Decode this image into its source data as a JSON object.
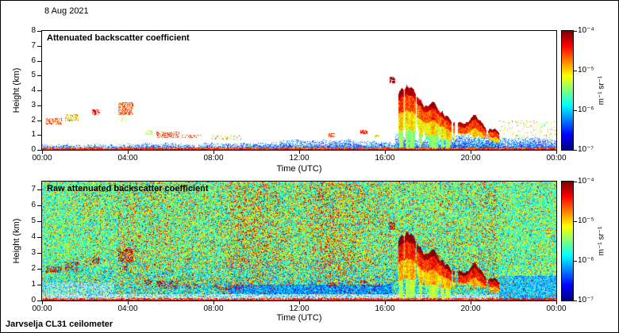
{
  "date_label": "8 Aug 2021",
  "footer_label": "Jarvselja CL31 ceilometer",
  "colorbar": {
    "units_label": "m⁻¹ sr⁻¹",
    "tick_labels": [
      "10⁻⁴",
      "10⁻⁵",
      "10⁻⁶",
      "10⁻⁷"
    ],
    "scale": "log10",
    "range_min": 1e-07,
    "range_max": 0.0001,
    "colormap": "jet"
  },
  "chart_data": [
    {
      "type": "heatmap",
      "title": "Attenuated backscatter coefficient",
      "xlabel": "Time (UTC)",
      "ylabel": "Height (km)",
      "x_range_hours": [
        0,
        24
      ],
      "xtick_hours": [
        0,
        4,
        8,
        12,
        16,
        20,
        24
      ],
      "xtick_labels": [
        "00:00",
        "04:00",
        "08:00",
        "12:00",
        "16:00",
        "20:00",
        "00:00"
      ],
      "ylim_km": [
        0,
        8
      ],
      "ytick_values": [
        0,
        1,
        2,
        3,
        4,
        5,
        6,
        7,
        8
      ],
      "ytick_labels": [
        "0",
        "1",
        "2",
        "3",
        "4",
        "5",
        "6",
        "7",
        "8"
      ],
      "features": {
        "surface_layer_km": [
          0,
          0.2
        ],
        "boundary_layer_aerosol": {
          "hours": [
            0,
            24
          ],
          "top_km_min": 0.3,
          "top_km_max": 0.7
        },
        "clouds": [
          {
            "hours": [
              0.15,
              0.9
            ],
            "km": [
              1.75,
              2.15
            ],
            "color": "orange",
            "density": 0.5
          },
          {
            "hours": [
              1.05,
              1.7
            ],
            "km": [
              1.95,
              2.45
            ],
            "color": "mixed",
            "density": 0.45
          },
          {
            "hours": [
              2.3,
              2.7
            ],
            "km": [
              2.35,
              2.75
            ],
            "color": "red",
            "density": 0.5
          },
          {
            "hours": [
              3.55,
              4.25
            ],
            "km": [
              2.4,
              3.25
            ],
            "color": "orange",
            "density": 0.6
          },
          {
            "hours": [
              3.6,
              3.95
            ],
            "km": [
              1.95,
              2.2
            ],
            "color": "green",
            "density": 0.4
          },
          {
            "hours": [
              4.75,
              5.15
            ],
            "km": [
              1.05,
              1.35
            ],
            "color": "green",
            "density": 0.5
          },
          {
            "hours": [
              5.3,
              6.4
            ],
            "km": [
              0.8,
              1.25
            ],
            "color": "orange",
            "density": 0.5
          },
          {
            "hours": [
              6.5,
              7.4
            ],
            "km": [
              0.8,
              1.05
            ],
            "color": "orange",
            "density": 0.35
          },
          {
            "hours": [
              7.9,
              9.3
            ],
            "km": [
              0.7,
              1.0
            ],
            "color": "mixed",
            "density": 0.25
          },
          {
            "hours": [
              13.35,
              13.65
            ],
            "km": [
              0.9,
              1.15
            ],
            "color": "orange",
            "density": 0.55
          },
          {
            "hours": [
              14.85,
              15.15
            ],
            "km": [
              1.1,
              1.35
            ],
            "color": "red",
            "density": 0.55
          },
          {
            "hours": [
              15.5,
              15.75
            ],
            "km": [
              0.85,
              1.05
            ],
            "color": "mixed",
            "density": 0.4
          },
          {
            "hours": [
              16.2,
              16.45
            ],
            "km": [
              4.5,
              4.95
            ],
            "color": "dark-red",
            "density": 0.8
          }
        ],
        "precipitation": {
          "hours": [
            16.55,
            21.3
          ],
          "cloud_base_km_points": [
            [
              16.55,
              4.2
            ],
            [
              17.0,
              4.4
            ],
            [
              17.5,
              3.8
            ],
            [
              18.0,
              3.1
            ],
            [
              18.6,
              2.5
            ],
            [
              19.0,
              2.2
            ],
            [
              19.6,
              2.1
            ],
            [
              20.0,
              2.0
            ],
            [
              20.6,
              1.6
            ],
            [
              21.3,
              1.0
            ]
          ]
        },
        "post_event_scatter": {
          "hours": [
            21.3,
            24
          ],
          "km": [
            0.8,
            2.0
          ]
        }
      }
    },
    {
      "type": "heatmap",
      "title": "Raw attenuated backscatter coefficient",
      "xlabel": "Time (UTC)",
      "ylabel": "Height (km)",
      "x_range_hours": [
        0,
        24
      ],
      "xtick_hours": [
        0,
        4,
        8,
        12,
        16,
        20,
        24
      ],
      "xtick_labels": [
        "00:00",
        "04:00",
        "08:00",
        "12:00",
        "16:00",
        "20:00",
        "00:00"
      ],
      "ylim_km": [
        0,
        7.5
      ],
      "ytick_values": [
        0,
        1,
        2,
        3,
        4,
        5,
        6,
        7
      ],
      "ytick_labels": [
        "0",
        "1",
        "2",
        "3",
        "4",
        "5",
        "6",
        "7"
      ],
      "features": {
        "noise_bands": [
          {
            "hours": [
              0,
              3.5
            ],
            "red_speckle": 0.05
          },
          {
            "hours": [
              3.5,
              8.7
            ],
            "red_speckle": 0.11
          },
          {
            "hours": [
              8.7,
              16.3
            ],
            "red_speckle": 0.15
          },
          {
            "hours": [
              16.3,
              21.2
            ],
            "red_speckle": 0.09
          },
          {
            "hours": [
              21.2,
              24
            ],
            "red_speckle": 0.035
          }
        ],
        "pale_surface_band_km": [
          0,
          0.45
        ],
        "low_level_blue": {
          "hours": [
            8.7,
            16.3
          ],
          "km": [
            0,
            1.0
          ]
        },
        "post_event_blue": {
          "hours": [
            21.3,
            24
          ],
          "km": [
            0,
            1.6
          ]
        }
      }
    }
  ]
}
